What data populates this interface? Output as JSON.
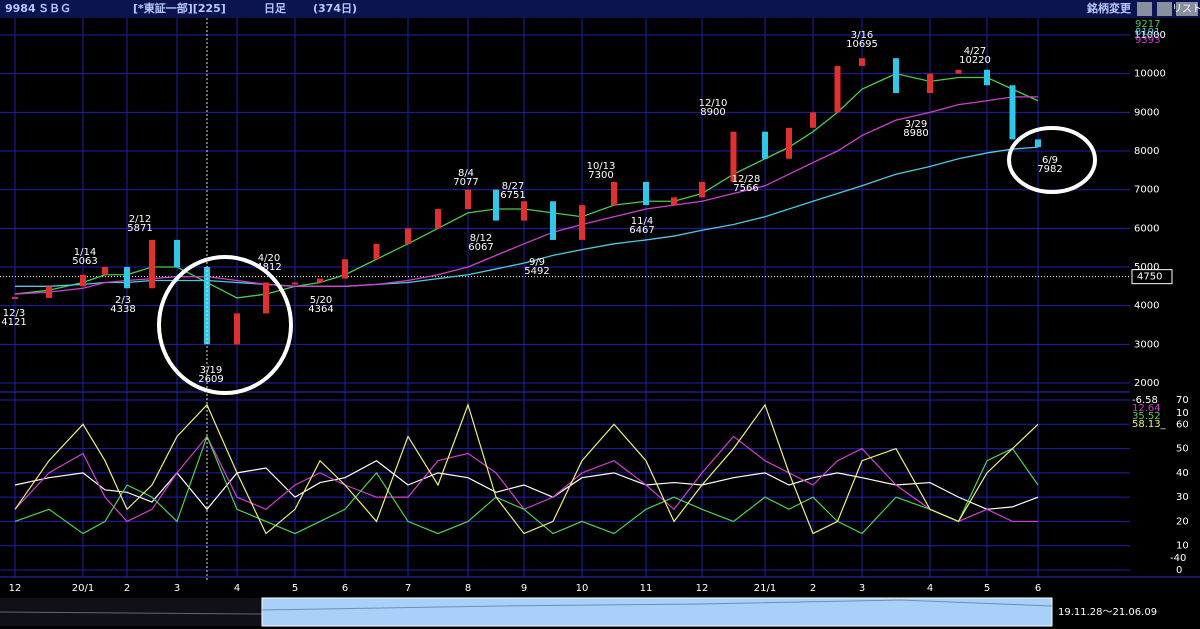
{
  "header": {
    "code": "9984",
    "name": "ＳＢＧ",
    "market": "[*東証一部][225]",
    "period": "日足",
    "count": "(374日)",
    "button": "銘柄変更",
    "list": "リスト"
  },
  "range_label": "19.11.28～21.06.09",
  "chart_data": [
    {
      "type": "candlestick",
      "categories": [
        "12",
        null,
        "20/1",
        null,
        "2",
        null,
        "3",
        null,
        "4",
        null,
        "5",
        null,
        "6",
        null,
        "7",
        null,
        "8",
        null,
        "9",
        null,
        "10",
        null,
        "11",
        null,
        "12",
        null,
        "21/1",
        null,
        "2",
        null,
        "3",
        null,
        "4",
        null,
        "5",
        null,
        "6"
      ],
      "values": [
        4200,
        4500,
        4800,
        5000,
        4450,
        5700,
        5000,
        3000,
        3800,
        4600,
        4600,
        4700,
        5200,
        5600,
        6000,
        6500,
        7000,
        6200,
        6700,
        5700,
        6600,
        7200,
        6600,
        6800,
        7200,
        8500,
        7800,
        8600,
        9000,
        10200,
        10400,
        9500,
        10000,
        10100,
        9700,
        8300,
        8100
      ],
      "up_color": "#e03030",
      "down_color": "#30c8e8",
      "ylim": [
        2000,
        11000
      ],
      "yticks": [
        2000,
        3000,
        4000,
        5000,
        6000,
        7000,
        8000,
        9000,
        10000,
        11000
      ],
      "grid": true,
      "reference_line": 4750,
      "series": [
        {
          "name": "9217",
          "color": "#4ccc4c",
          "values": [
            4300,
            4400,
            4600,
            4800,
            4800,
            5000,
            5000,
            4600,
            4200,
            4300,
            4500,
            4600,
            4800,
            5200,
            5600,
            6000,
            6400,
            6500,
            6500,
            6400,
            6300,
            6600,
            6700,
            6700,
            6900,
            7400,
            7800,
            8100,
            8500,
            9000,
            9600,
            10000,
            9800,
            9900,
            9900,
            9600,
            9300
          ]
        },
        {
          "name": "8191",
          "color": "#50c8e0",
          "values": [
            4500,
            4500,
            4550,
            4600,
            4600,
            4650,
            4650,
            4650,
            4600,
            4550,
            4500,
            4500,
            4500,
            4550,
            4600,
            4700,
            4800,
            4950,
            5100,
            5300,
            5450,
            5600,
            5700,
            5800,
            5950,
            6100,
            6300,
            6500,
            6700,
            6900,
            7100,
            7400,
            7600,
            7800,
            7950,
            8050,
            8100
          ]
        },
        {
          "name": "9393",
          "color": "#d040d0",
          "values": [
            4300,
            4350,
            4450,
            4600,
            4650,
            4700,
            4750,
            4750,
            4650,
            4550,
            4500,
            4500,
            4500,
            4550,
            4650,
            4800,
            5000,
            5300,
            5600,
            5900,
            6100,
            6300,
            6500,
            6600,
            6700,
            6900,
            7100,
            7400,
            7700,
            8000,
            8400,
            8800,
            9000,
            9200,
            9300,
            9400,
            9400
          ]
        }
      ],
      "annotations": [
        {
          "date": "12/3",
          "price": 4121
        },
        {
          "date": "1/14",
          "price": 5063
        },
        {
          "date": "2/3",
          "price": 4338
        },
        {
          "date": "2/12",
          "price": 5871
        },
        {
          "date": "3/19",
          "price": 2609
        },
        {
          "date": "4/20",
          "price": 4812
        },
        {
          "date": "5/20",
          "price": 4364
        },
        {
          "date": "8/4",
          "price": 7077
        },
        {
          "date": "8/27",
          "price": 6751
        },
        {
          "date": "8/12",
          "price": 6067
        },
        {
          "date": "9/9",
          "price": 5492
        },
        {
          "date": "10/13",
          "price": 7300
        },
        {
          "date": "11/4",
          "price": 6467
        },
        {
          "date": "12/10",
          "price": 8900
        },
        {
          "date": "12/28",
          "price": 7566
        },
        {
          "date": "3/16",
          "price": 10695
        },
        {
          "date": "3/29",
          "price": 8980
        },
        {
          "date": "4/27",
          "price": 10220
        },
        {
          "date": "6/9",
          "price": 7982
        }
      ]
    },
    {
      "type": "line",
      "ylim": [
        0,
        70
      ],
      "yticks": [
        0,
        10,
        20,
        30,
        40,
        50,
        60,
        70
      ],
      "extra_labels": [
        "10",
        "-40"
      ],
      "series": [
        {
          "name": "-6.58",
          "color": "#ffffff",
          "values": [
            35,
            38,
            40,
            33,
            32,
            28,
            40,
            25,
            40,
            42,
            30,
            36,
            38,
            45,
            35,
            40,
            38,
            32,
            35,
            30,
            38,
            40,
            35,
            36,
            35,
            38,
            40,
            35,
            38,
            40,
            38,
            35,
            36,
            30,
            25,
            26,
            30
          ]
        },
        {
          "name": "12.64",
          "color": "#d040d0",
          "values": [
            25,
            40,
            48,
            30,
            20,
            25,
            40,
            55,
            30,
            25,
            35,
            40,
            35,
            30,
            30,
            45,
            48,
            40,
            25,
            30,
            40,
            45,
            35,
            25,
            40,
            55,
            45,
            40,
            35,
            45,
            50,
            35,
            25,
            20,
            25,
            20,
            20
          ]
        },
        {
          "name": "35.52",
          "color": "#50d050",
          "values": [
            20,
            25,
            15,
            20,
            35,
            30,
            20,
            55,
            25,
            20,
            15,
            20,
            25,
            40,
            20,
            15,
            20,
            30,
            25,
            15,
            20,
            15,
            25,
            30,
            25,
            20,
            30,
            25,
            30,
            20,
            15,
            30,
            25,
            20,
            45,
            50,
            35
          ]
        },
        {
          "name": "58.13_",
          "color": "#f0f070",
          "values": [
            25,
            45,
            60,
            45,
            25,
            35,
            55,
            68,
            40,
            15,
            25,
            45,
            35,
            20,
            55,
            35,
            68,
            30,
            15,
            20,
            45,
            60,
            45,
            20,
            35,
            50,
            68,
            40,
            15,
            20,
            45,
            50,
            25,
            20,
            40,
            50,
            60
          ]
        }
      ]
    }
  ]
}
